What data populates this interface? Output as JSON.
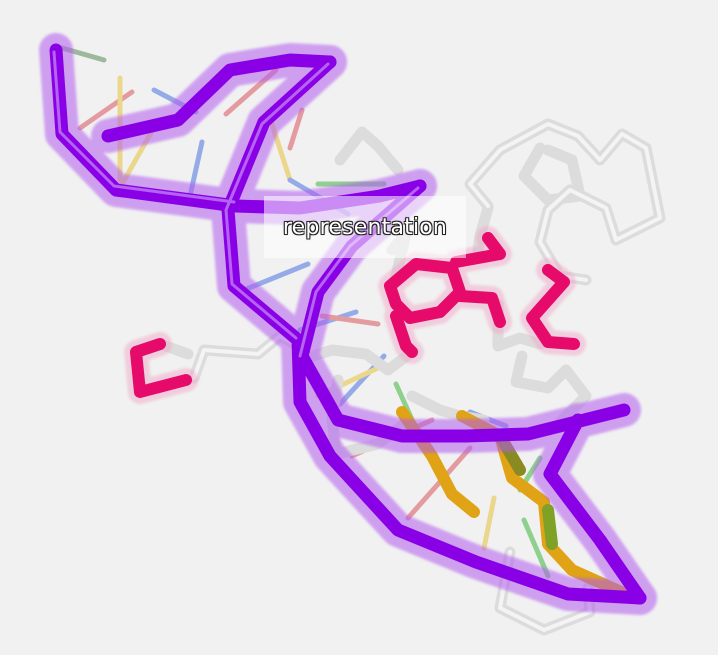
{
  "viewer": {
    "hover_label": "representation"
  },
  "colors": {
    "background": "#f1f1f1",
    "backbone": "#8a00e6",
    "backbone_glow": "#b25cef",
    "highlight": "#e60a6b",
    "carbon": "#e6e6e6",
    "base_red": "#d9555f",
    "base_blue": "#4a72e0",
    "base_green": "#3fb83f",
    "base_yellow": "#e6c23a",
    "ligand_orange": "#e0a316"
  },
  "icons": {
    "molecule": "molecule-3d-render"
  }
}
